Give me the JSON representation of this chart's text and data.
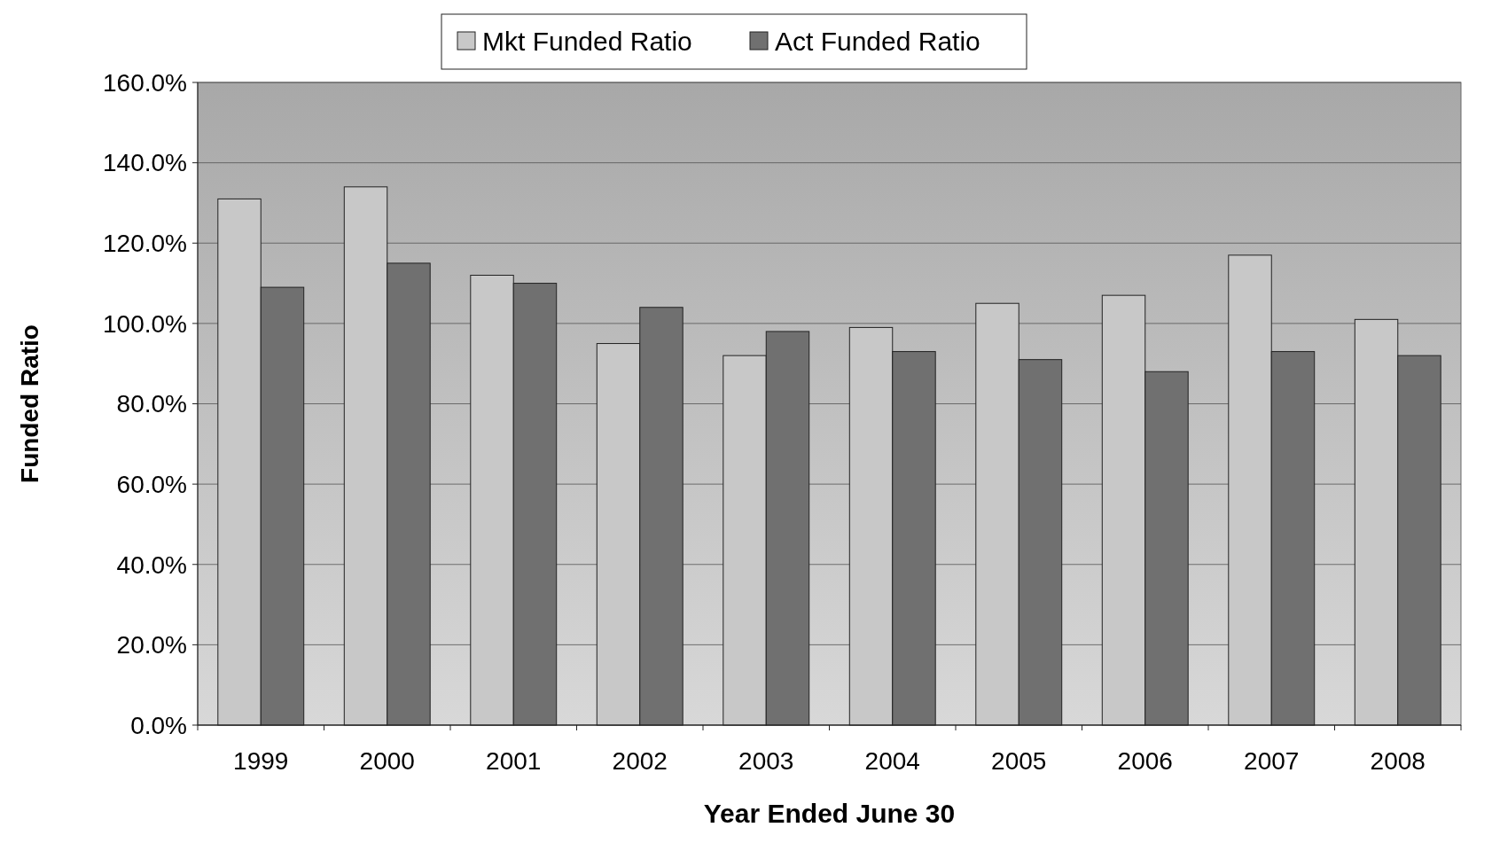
{
  "chart_data": {
    "type": "bar",
    "xlabel": "Year Ended June 30",
    "ylabel": "Funded Ratio",
    "categories": [
      "1999",
      "2000",
      "2001",
      "2002",
      "2003",
      "2004",
      "2005",
      "2006",
      "2007",
      "2008"
    ],
    "series": [
      {
        "name": "Mkt Funded Ratio",
        "color": "#c8c8c8",
        "values": [
          131,
          134,
          112,
          95,
          92,
          99,
          105,
          107,
          117,
          101
        ]
      },
      {
        "name": "Act Funded Ratio",
        "color": "#707070",
        "values": [
          109,
          115,
          110,
          104,
          98,
          93,
          91,
          88,
          93,
          92
        ]
      }
    ],
    "ylim": [
      0,
      160
    ],
    "yticks": [
      {
        "value": 0,
        "label": "0.0%"
      },
      {
        "value": 20,
        "label": "20.0%"
      },
      {
        "value": 40,
        "label": "40.0%"
      },
      {
        "value": 60,
        "label": "60.0%"
      },
      {
        "value": 80,
        "label": "80.0%"
      },
      {
        "value": 100,
        "label": "100.0%"
      },
      {
        "value": 120,
        "label": "120.0%"
      },
      {
        "value": 140,
        "label": "140.0%"
      },
      {
        "value": 160,
        "label": "160.0%"
      }
    ],
    "grid": "y",
    "legend": "top"
  }
}
